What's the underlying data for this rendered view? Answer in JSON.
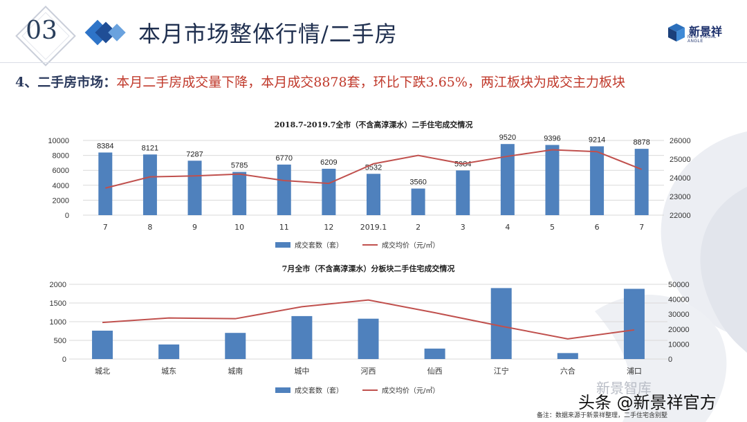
{
  "header": {
    "section_number": "03",
    "title": "本月市场整体行情/二手房",
    "logo_text": "新景祥",
    "logo_subtext": "NEW VISUAL ANGLE"
  },
  "headline": {
    "lead": "4、二手房市场：",
    "body": "本月二手房成交量下降，本月成交8878套，环比下跌3.65%，两江板块为成交主力板块"
  },
  "chart_data": [
    {
      "type": "bar",
      "title": "2018.7-2019.7全市（不含高淳溧水）二手住宅成交情况",
      "categories": [
        "7",
        "8",
        "9",
        "10",
        "11",
        "12",
        "2019.1",
        "2",
        "3",
        "4",
        "5",
        "6",
        "7"
      ],
      "series": [
        {
          "name": "成交套数（套）",
          "type": "bar",
          "axis": "left",
          "values": [
            8384,
            8121,
            7287,
            5785,
            6770,
            6209,
            5532,
            3560,
            5984,
            9520,
            9396,
            9214,
            8878
          ],
          "color": "#4f81bd"
        },
        {
          "name": "成交均价（元/㎡）",
          "type": "line",
          "axis": "right",
          "values": [
            23450,
            24050,
            24100,
            24200,
            23850,
            23700,
            24750,
            25200,
            24750,
            25150,
            25500,
            25400,
            24450
          ],
          "color": "#c0504d"
        }
      ],
      "y_left": {
        "min": 0,
        "max": 10000,
        "ticks": [
          0,
          2000,
          4000,
          6000,
          8000,
          10000
        ]
      },
      "y_right": {
        "min": 22000,
        "max": 26000,
        "ticks": [
          22000,
          23000,
          24000,
          25000,
          26000
        ]
      },
      "data_labels": true,
      "legend_position": "bottom"
    },
    {
      "type": "bar",
      "title": "7月全市（不含高淳溧水）分板块二手住宅成交情况",
      "categories": [
        "城北",
        "城东",
        "城南",
        "城中",
        "河西",
        "仙西",
        "江宁",
        "六合",
        "浦口"
      ],
      "series": [
        {
          "name": "成交套数（套）",
          "type": "bar",
          "axis": "left",
          "values": [
            760,
            390,
            700,
            1150,
            1080,
            280,
            1900,
            160,
            1880
          ],
          "color": "#4f81bd"
        },
        {
          "name": "成交均价（元/㎡）",
          "type": "line",
          "axis": "right",
          "values": [
            24500,
            27500,
            27000,
            35000,
            39500,
            31000,
            22000,
            13500,
            19500
          ],
          "color": "#c0504d"
        }
      ],
      "y_left": {
        "min": 0,
        "max": 2000,
        "ticks": [
          0,
          500,
          1000,
          1500,
          2000
        ]
      },
      "y_right": {
        "min": 0,
        "max": 50000,
        "ticks": [
          0,
          10000,
          20000,
          30000,
          40000,
          50000
        ]
      },
      "data_labels": false,
      "legend_position": "bottom"
    }
  ],
  "footer": {
    "note": "备注：数据来源于新景祥整理，二手住宅含别墅",
    "watermark_top": "新景智库",
    "watermark_bottom": "头条 @新景祥官方"
  }
}
